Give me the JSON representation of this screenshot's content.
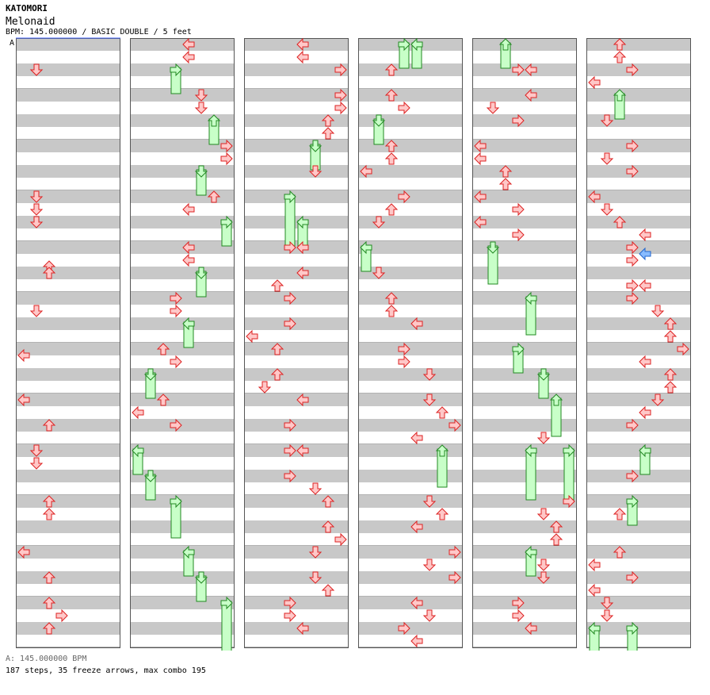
{
  "header": {
    "artist": "KATOMORI",
    "title": "Melonaid",
    "info": "BPM: 145.000000 / BASIC DOUBLE / 5 feet",
    "bpm_marker": "A"
  },
  "footer": {
    "bpm_line": "A: 145.000000 BPM",
    "stats_line": "187 steps, 35 freeze arrows, max combo 195"
  },
  "colors": {
    "stripe": "#c8c8c8",
    "arrow_fill": "#ffc8c8",
    "arrow_stroke": "#dd2222",
    "freeze_fill": "#c8ffc8",
    "freeze_stroke": "#228822",
    "alt_arrow_fill": "#88bbff",
    "alt_arrow_stroke": "#2266cc",
    "bpm_line": "#4466ff"
  },
  "chart_data": {
    "type": "step-chart",
    "columns": 6,
    "measures_per_column": 12,
    "lanes": 8,
    "arrow_glyph_by_lane": [
      "left",
      "down",
      "up",
      "right",
      "left",
      "down",
      "up",
      "right"
    ],
    "notes": [
      [
        0,
        0,
        4,
        1,
        "n"
      ],
      [
        0,
        0,
        4,
        1,
        "n"
      ],
      [
        0,
        3,
        4,
        1,
        "n"
      ],
      [
        0,
        3,
        0,
        1,
        "n"
      ],
      [
        0,
        3,
        2,
        1,
        "n"
      ],
      [
        0,
        4,
        3,
        2,
        "n"
      ],
      [
        0,
        4,
        4,
        2,
        "n"
      ],
      [
        0,
        5,
        2,
        1,
        "n"
      ],
      [
        0,
        6,
        1,
        0,
        "n"
      ],
      [
        0,
        7,
        0,
        0,
        "n"
      ],
      [
        0,
        7,
        4,
        2,
        "n"
      ],
      [
        0,
        8,
        0,
        1,
        "n"
      ],
      [
        0,
        8,
        2,
        1,
        "n"
      ],
      [
        0,
        9,
        0,
        2,
        "n"
      ],
      [
        0,
        9,
        2,
        2,
        "n"
      ],
      [
        0,
        10,
        0,
        0,
        "n"
      ],
      [
        0,
        10,
        4,
        2,
        "n"
      ],
      [
        0,
        11,
        0,
        2,
        "n"
      ],
      [
        0,
        11,
        2,
        3,
        "n"
      ],
      [
        0,
        11,
        4,
        2,
        "n"
      ],
      [
        1,
        0,
        0,
        4,
        "n"
      ],
      [
        1,
        0,
        2,
        4,
        "n"
      ],
      [
        1,
        0,
        4,
        3,
        "f",
        2
      ],
      [
        1,
        1,
        0,
        5,
        "n"
      ],
      [
        1,
        1,
        2,
        5,
        "n"
      ],
      [
        1,
        1,
        4,
        6,
        "f",
        2
      ],
      [
        1,
        2,
        0,
        7,
        "n"
      ],
      [
        1,
        2,
        2,
        7,
        "n"
      ],
      [
        1,
        2,
        4,
        5,
        "f",
        2
      ],
      [
        1,
        3,
        0,
        6,
        "n"
      ],
      [
        1,
        3,
        2,
        4,
        "n"
      ],
      [
        1,
        3,
        4,
        7,
        "f",
        2
      ],
      [
        1,
        4,
        0,
        4,
        "n"
      ],
      [
        1,
        4,
        2,
        4,
        "n"
      ],
      [
        1,
        4,
        4,
        5,
        "f",
        2
      ],
      [
        1,
        5,
        0,
        3,
        "n"
      ],
      [
        1,
        5,
        2,
        3,
        "n"
      ],
      [
        1,
        5,
        4,
        4,
        "f",
        2
      ],
      [
        1,
        6,
        0,
        2,
        "n"
      ],
      [
        1,
        6,
        2,
        3,
        "n"
      ],
      [
        1,
        6,
        4,
        1,
        "f",
        2
      ],
      [
        1,
        7,
        0,
        2,
        "n"
      ],
      [
        1,
        7,
        2,
        0,
        "n"
      ],
      [
        1,
        7,
        4,
        3,
        "n"
      ],
      [
        1,
        8,
        0,
        0,
        "f",
        2
      ],
      [
        1,
        8,
        4,
        1,
        "f",
        2
      ],
      [
        1,
        9,
        0,
        3,
        "f",
        3
      ],
      [
        1,
        10,
        0,
        4,
        "f",
        2
      ],
      [
        1,
        10,
        4,
        5,
        "f",
        2
      ],
      [
        1,
        11,
        0,
        7,
        "f",
        4
      ],
      [
        2,
        0,
        0,
        4,
        "n"
      ],
      [
        2,
        0,
        2,
        4,
        "n"
      ],
      [
        2,
        0,
        4,
        7,
        "n"
      ],
      [
        2,
        1,
        0,
        7,
        "n"
      ],
      [
        2,
        1,
        2,
        7,
        "n"
      ],
      [
        2,
        1,
        4,
        6,
        "n"
      ],
      [
        2,
        1,
        6,
        6,
        "n"
      ],
      [
        2,
        2,
        0,
        5,
        "f",
        2
      ],
      [
        2,
        2,
        4,
        5,
        "n"
      ],
      [
        2,
        3,
        0,
        3,
        "f",
        4
      ],
      [
        2,
        3,
        4,
        4,
        "f",
        2
      ],
      [
        2,
        4,
        0,
        3,
        "n"
      ],
      [
        2,
        4,
        0,
        4,
        "n"
      ],
      [
        2,
        4,
        4,
        4,
        "n"
      ],
      [
        2,
        4,
        6,
        2,
        "n"
      ],
      [
        2,
        5,
        0,
        3,
        "n"
      ],
      [
        2,
        5,
        4,
        3,
        "n"
      ],
      [
        2,
        5,
        6,
        0,
        "n"
      ],
      [
        2,
        6,
        0,
        2,
        "n"
      ],
      [
        2,
        6,
        4,
        2,
        "n"
      ],
      [
        2,
        6,
        6,
        1,
        "n"
      ],
      [
        2,
        7,
        0,
        4,
        "n"
      ],
      [
        2,
        7,
        4,
        3,
        "n"
      ],
      [
        2,
        8,
        0,
        3,
        "n"
      ],
      [
        2,
        8,
        0,
        4,
        "n"
      ],
      [
        2,
        8,
        4,
        3,
        "n"
      ],
      [
        2,
        8,
        6,
        5,
        "n"
      ],
      [
        2,
        9,
        0,
        6,
        "n"
      ],
      [
        2,
        9,
        4,
        6,
        "n"
      ],
      [
        2,
        9,
        6,
        7,
        "n"
      ],
      [
        2,
        10,
        0,
        5,
        "n"
      ],
      [
        2,
        10,
        4,
        5,
        "n"
      ],
      [
        2,
        10,
        6,
        6,
        "n"
      ],
      [
        2,
        11,
        0,
        3,
        "n"
      ],
      [
        2,
        11,
        2,
        3,
        "n"
      ],
      [
        2,
        11,
        4,
        4,
        "n"
      ],
      [
        3,
        0,
        0,
        3,
        "f",
        2
      ],
      [
        3,
        0,
        0,
        4,
        "f",
        2
      ],
      [
        3,
        0,
        4,
        2,
        "n"
      ],
      [
        3,
        1,
        0,
        2,
        "n"
      ],
      [
        3,
        1,
        2,
        3,
        "n"
      ],
      [
        3,
        1,
        4,
        1,
        "f",
        2
      ],
      [
        3,
        2,
        0,
        2,
        "n"
      ],
      [
        3,
        2,
        2,
        2,
        "n"
      ],
      [
        3,
        2,
        4,
        0,
        "n"
      ],
      [
        3,
        3,
        0,
        3,
        "n"
      ],
      [
        3,
        3,
        2,
        2,
        "n"
      ],
      [
        3,
        3,
        4,
        1,
        "n"
      ],
      [
        3,
        4,
        0,
        0,
        "f",
        2
      ],
      [
        3,
        4,
        4,
        1,
        "n"
      ],
      [
        3,
        5,
        0,
        2,
        "n"
      ],
      [
        3,
        5,
        2,
        2,
        "n"
      ],
      [
        3,
        5,
        4,
        4,
        "n"
      ],
      [
        3,
        6,
        0,
        3,
        "n"
      ],
      [
        3,
        6,
        2,
        3,
        "n"
      ],
      [
        3,
        6,
        4,
        5,
        "n"
      ],
      [
        3,
        7,
        0,
        5,
        "n"
      ],
      [
        3,
        7,
        2,
        6,
        "n"
      ],
      [
        3,
        7,
        4,
        7,
        "n"
      ],
      [
        3,
        7,
        6,
        4,
        "n"
      ],
      [
        3,
        8,
        0,
        6,
        "f",
        3
      ],
      [
        3,
        9,
        0,
        5,
        "n"
      ],
      [
        3,
        9,
        2,
        6,
        "n"
      ],
      [
        3,
        9,
        4,
        4,
        "n"
      ],
      [
        3,
        10,
        0,
        7,
        "n"
      ],
      [
        3,
        10,
        2,
        5,
        "n"
      ],
      [
        3,
        10,
        4,
        7,
        "n"
      ],
      [
        3,
        11,
        0,
        4,
        "n"
      ],
      [
        3,
        11,
        2,
        5,
        "n"
      ],
      [
        3,
        11,
        4,
        3,
        "n"
      ],
      [
        3,
        11,
        6,
        4,
        "n"
      ],
      [
        4,
        0,
        0,
        2,
        "f",
        2
      ],
      [
        4,
        0,
        4,
        3,
        "n"
      ],
      [
        4,
        0,
        4,
        4,
        "n"
      ],
      [
        4,
        1,
        0,
        4,
        "n"
      ],
      [
        4,
        1,
        2,
        1,
        "n"
      ],
      [
        4,
        1,
        4,
        3,
        "n"
      ],
      [
        4,
        2,
        0,
        0,
        "n"
      ],
      [
        4,
        2,
        2,
        0,
        "n"
      ],
      [
        4,
        2,
        4,
        2,
        "n"
      ],
      [
        4,
        2,
        6,
        2,
        "n"
      ],
      [
        4,
        3,
        0,
        0,
        "n"
      ],
      [
        4,
        3,
        2,
        3,
        "n"
      ],
      [
        4,
        3,
        4,
        0,
        "n"
      ],
      [
        4,
        3,
        6,
        3,
        "n"
      ],
      [
        4,
        4,
        0,
        1,
        "f",
        3
      ],
      [
        4,
        5,
        0,
        4,
        "f",
        3
      ],
      [
        4,
        6,
        0,
        3,
        "f",
        2
      ],
      [
        4,
        6,
        4,
        5,
        "f",
        2
      ],
      [
        4,
        7,
        0,
        6,
        "f",
        3
      ],
      [
        4,
        7,
        6,
        5,
        "n"
      ],
      [
        4,
        8,
        0,
        4,
        "f",
        4
      ],
      [
        4,
        8,
        0,
        7,
        "f",
        4
      ],
      [
        4,
        9,
        0,
        7,
        "n"
      ],
      [
        4,
        9,
        2,
        5,
        "n"
      ],
      [
        4,
        9,
        4,
        6,
        "n"
      ],
      [
        4,
        9,
        6,
        6,
        "n"
      ],
      [
        4,
        10,
        0,
        4,
        "f",
        2
      ],
      [
        4,
        10,
        2,
        5,
        "n"
      ],
      [
        4,
        10,
        4,
        5,
        "n"
      ],
      [
        4,
        11,
        0,
        3,
        "n"
      ],
      [
        4,
        11,
        2,
        3,
        "n"
      ],
      [
        4,
        11,
        4,
        4,
        "n"
      ],
      [
        5,
        0,
        0,
        2,
        "n"
      ],
      [
        5,
        0,
        2,
        2,
        "n"
      ],
      [
        5,
        0,
        4,
        3,
        "n"
      ],
      [
        5,
        0,
        6,
        0,
        "n"
      ],
      [
        5,
        1,
        0,
        2,
        "f",
        2
      ],
      [
        5,
        1,
        4,
        1,
        "n"
      ],
      [
        5,
        2,
        0,
        3,
        "n"
      ],
      [
        5,
        2,
        2,
        1,
        "n"
      ],
      [
        5,
        2,
        4,
        3,
        "n"
      ],
      [
        5,
        3,
        0,
        0,
        "n"
      ],
      [
        5,
        3,
        2,
        1,
        "n"
      ],
      [
        5,
        3,
        4,
        2,
        "n"
      ],
      [
        5,
        3,
        6,
        4,
        "n"
      ],
      [
        5,
        4,
        0,
        3,
        "n"
      ],
      [
        5,
        4,
        2,
        3,
        "n"
      ],
      [
        5,
        4,
        1,
        4,
        "a"
      ],
      [
        5,
        4,
        6,
        3,
        "n"
      ],
      [
        5,
        4,
        6,
        4,
        "n"
      ],
      [
        5,
        5,
        0,
        3,
        "n"
      ],
      [
        5,
        5,
        2,
        5,
        "n"
      ],
      [
        5,
        5,
        4,
        6,
        "n"
      ],
      [
        5,
        5,
        6,
        6,
        "n"
      ],
      [
        5,
        6,
        0,
        7,
        "n"
      ],
      [
        5,
        6,
        2,
        4,
        "n"
      ],
      [
        5,
        6,
        4,
        6,
        "n"
      ],
      [
        5,
        6,
        6,
        6,
        "n"
      ],
      [
        5,
        7,
        0,
        5,
        "n"
      ],
      [
        5,
        7,
        2,
        4,
        "n"
      ],
      [
        5,
        7,
        4,
        3,
        "n"
      ],
      [
        5,
        8,
        0,
        4,
        "f",
        2
      ],
      [
        5,
        8,
        4,
        3,
        "n"
      ],
      [
        5,
        9,
        0,
        3,
        "f",
        2
      ],
      [
        5,
        9,
        2,
        2,
        "n"
      ],
      [
        5,
        10,
        0,
        2,
        "n"
      ],
      [
        5,
        10,
        2,
        0,
        "n"
      ],
      [
        5,
        10,
        4,
        3,
        "n"
      ],
      [
        5,
        10,
        6,
        0,
        "n"
      ],
      [
        5,
        11,
        0,
        1,
        "n"
      ],
      [
        5,
        11,
        2,
        1,
        "n"
      ],
      [
        5,
        11,
        4,
        0,
        "f",
        2
      ],
      [
        5,
        11,
        4,
        3,
        "f",
        2
      ]
    ]
  }
}
